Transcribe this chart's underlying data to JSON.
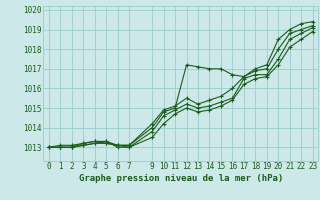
{
  "background_color": "#cce8e8",
  "grid_color": "#99cccc",
  "line_color": "#1a5c1a",
  "text_color": "#1a5c1a",
  "xlabel": "Graphe pression niveau de la mer (hPa)",
  "ylim": [
    1012.3,
    1020.2
  ],
  "xlim": [
    -0.5,
    23.5
  ],
  "yticks": [
    1013,
    1014,
    1015,
    1016,
    1017,
    1018,
    1019,
    1020
  ],
  "xticks": [
    0,
    1,
    2,
    3,
    4,
    5,
    6,
    7,
    9,
    10,
    11,
    12,
    13,
    14,
    15,
    16,
    17,
    18,
    19,
    20,
    21,
    22,
    23
  ],
  "series": [
    [
      1013.0,
      1013.0,
      1013.0,
      1013.2,
      1013.3,
      1013.3,
      1013.1,
      1013.1,
      1014.0,
      1014.8,
      1015.0,
      1017.2,
      1017.1,
      1017.0,
      1017.0,
      1016.7,
      1016.6,
      1017.0,
      1017.2,
      1018.5,
      1019.0,
      1019.3,
      1019.4
    ],
    [
      1013.0,
      1013.1,
      1013.1,
      1013.2,
      1013.3,
      1013.2,
      1013.1,
      1013.1,
      1014.2,
      1014.9,
      1015.1,
      1015.5,
      1015.2,
      1015.4,
      1015.6,
      1016.0,
      1016.6,
      1016.9,
      1017.0,
      1018.0,
      1018.8,
      1019.0,
      1019.2
    ],
    [
      1013.0,
      1013.0,
      1013.0,
      1013.1,
      1013.2,
      1013.3,
      1013.0,
      1013.0,
      1013.8,
      1014.6,
      1014.9,
      1015.2,
      1015.0,
      1015.1,
      1015.3,
      1015.5,
      1016.5,
      1016.7,
      1016.7,
      1017.5,
      1018.5,
      1018.8,
      1019.1
    ],
    [
      1013.0,
      1013.0,
      1013.0,
      1013.1,
      1013.2,
      1013.2,
      1013.1,
      1013.0,
      1013.5,
      1014.2,
      1014.7,
      1015.0,
      1014.8,
      1014.9,
      1015.1,
      1015.4,
      1016.2,
      1016.5,
      1016.6,
      1017.2,
      1018.1,
      1018.5,
      1018.9
    ]
  ],
  "series_x": [
    0,
    1,
    2,
    3,
    4,
    5,
    6,
    7,
    9,
    10,
    11,
    12,
    13,
    14,
    15,
    16,
    17,
    18,
    19,
    20,
    21,
    22,
    23
  ],
  "font_family": "monospace",
  "tick_fontsize": 5.5,
  "xlabel_fontsize": 6.5
}
